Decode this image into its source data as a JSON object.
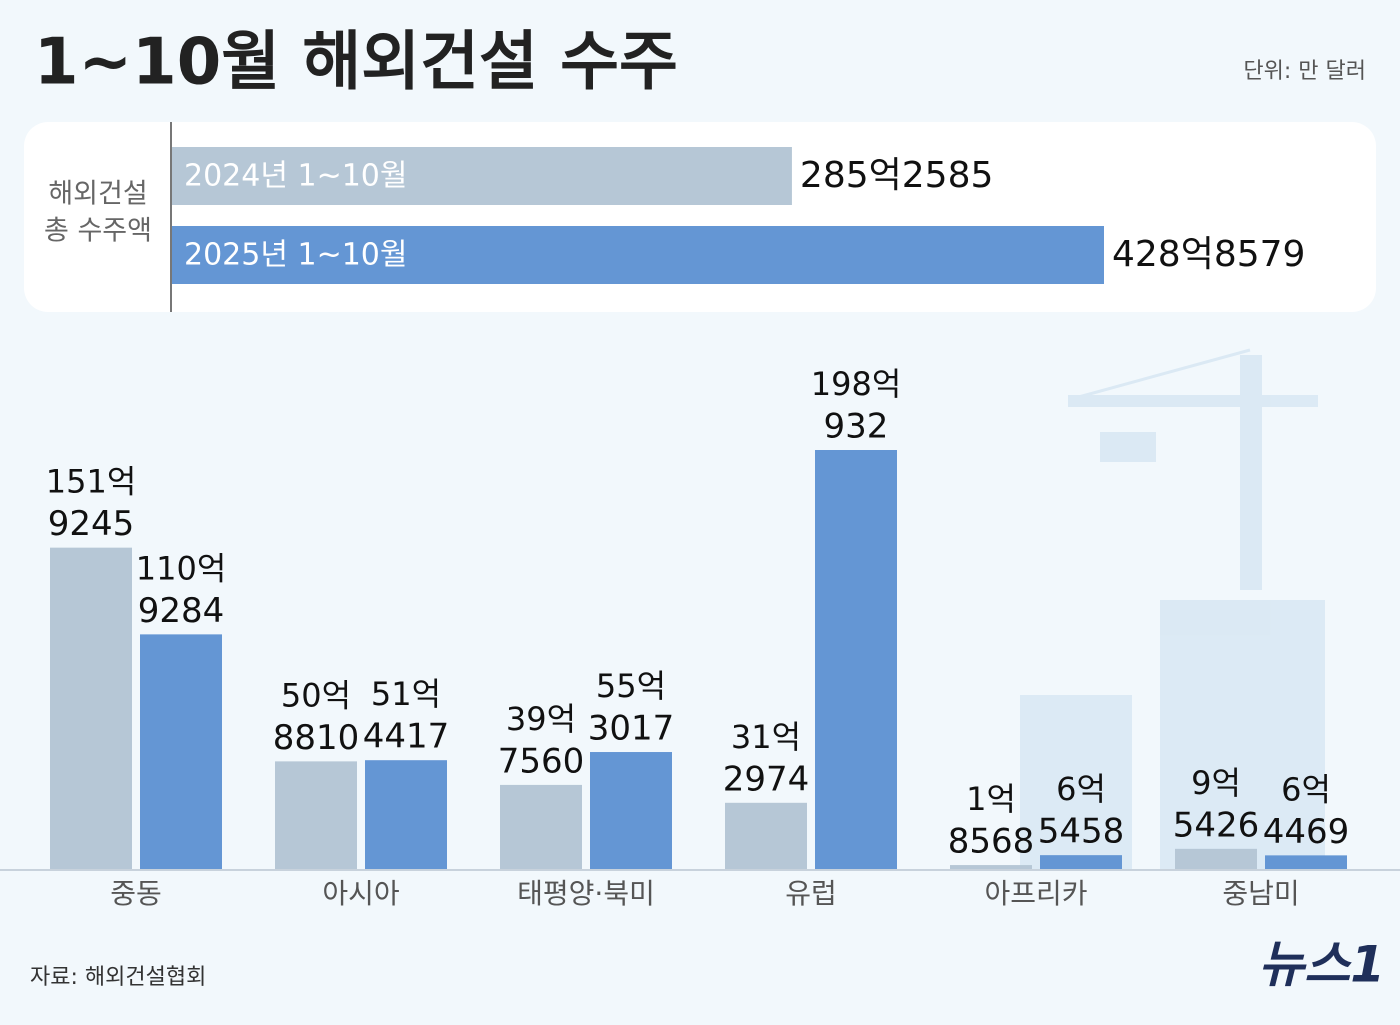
{
  "header": {
    "title": "1~10월 해외건설 수주",
    "unit": "단위: 만 달러",
    "source": "자료: 해외건설협회",
    "logo": "뉴스1"
  },
  "chart_data": [
    {
      "type": "hbar",
      "label": [
        "해외건설",
        "총 수주액"
      ],
      "categories": [
        "2024년 1~10월",
        "2025년 1~10월"
      ],
      "values": [
        2852585,
        4288579
      ],
      "value_labels": [
        "285억2585",
        "428억8579"
      ],
      "colors": [
        "#b6c7d6",
        "#6496d4"
      ]
    },
    {
      "type": "bar",
      "categories": [
        "중동",
        "아시아",
        "태평양·북미",
        "유럽",
        "아프리카",
        "중남미"
      ],
      "series": [
        {
          "color": "#b6c7d6",
          "values": [
            1519245,
            508810,
            397560,
            312974,
            18568,
            95426
          ],
          "value_labels": [
            [
              "151억",
              "9245"
            ],
            [
              "50억",
              "8810"
            ],
            [
              "39억",
              "7560"
            ],
            [
              "31억",
              "2974"
            ],
            [
              "1억",
              "8568"
            ],
            [
              "9억",
              "5426"
            ]
          ]
        },
        {
          "color": "#6496d4",
          "values": [
            1109284,
            514417,
            553017,
            1980932,
            65458,
            64469
          ],
          "value_labels": [
            [
              "110억",
              "9284"
            ],
            [
              "51억",
              "4417"
            ],
            [
              "55억",
              "3017"
            ],
            [
              "198억",
              "932"
            ],
            [
              "6억",
              "5458"
            ],
            [
              "6억",
              "4469"
            ]
          ]
        }
      ]
    }
  ]
}
